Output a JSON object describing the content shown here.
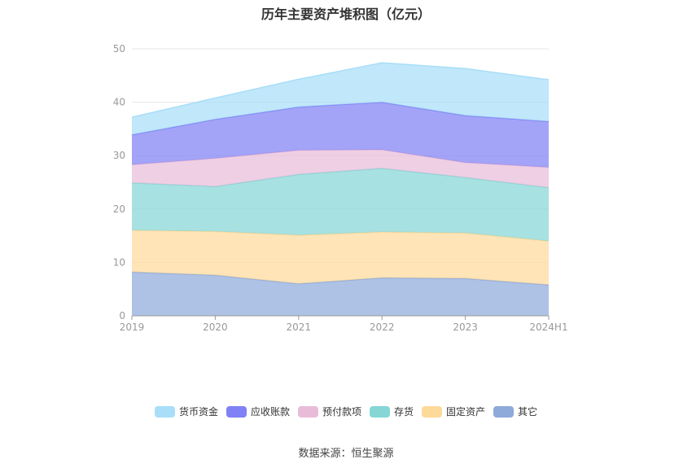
{
  "title": "历年主要资产堆积图（亿元）",
  "source_text": "数据来源：恒生聚源",
  "chart_data": {
    "type": "area",
    "stacked": true,
    "title": "历年主要资产堆积图（亿元）",
    "categories": [
      "2019",
      "2020",
      "2021",
      "2022",
      "2023",
      "2024H1"
    ],
    "ylim": [
      0,
      50
    ],
    "yticks": [
      0,
      10,
      20,
      30,
      40,
      50
    ],
    "grid": true,
    "legend_position": "bottom",
    "series": [
      {
        "name": "其它",
        "color": "#8eaadb",
        "values": [
          8.2,
          7.6,
          6.0,
          7.1,
          7.0,
          5.8
        ]
      },
      {
        "name": "固定资产",
        "color": "#fdd99a",
        "values": [
          7.8,
          8.2,
          9.1,
          8.6,
          8.5,
          8.2
        ]
      },
      {
        "name": "存货",
        "color": "#86d6d6",
        "values": [
          8.9,
          8.4,
          11.4,
          11.9,
          10.4,
          10.0
        ]
      },
      {
        "name": "预付款项",
        "color": "#e8bcd9",
        "values": [
          3.4,
          5.3,
          4.5,
          3.5,
          2.8,
          3.8
        ]
      },
      {
        "name": "应收账款",
        "color": "#7f81f4",
        "values": [
          5.6,
          7.3,
          8.1,
          8.9,
          8.8,
          8.6
        ]
      },
      {
        "name": "货币资金",
        "color": "#a8def8",
        "values": [
          3.3,
          4.0,
          5.2,
          7.4,
          8.8,
          7.8
        ]
      }
    ]
  }
}
